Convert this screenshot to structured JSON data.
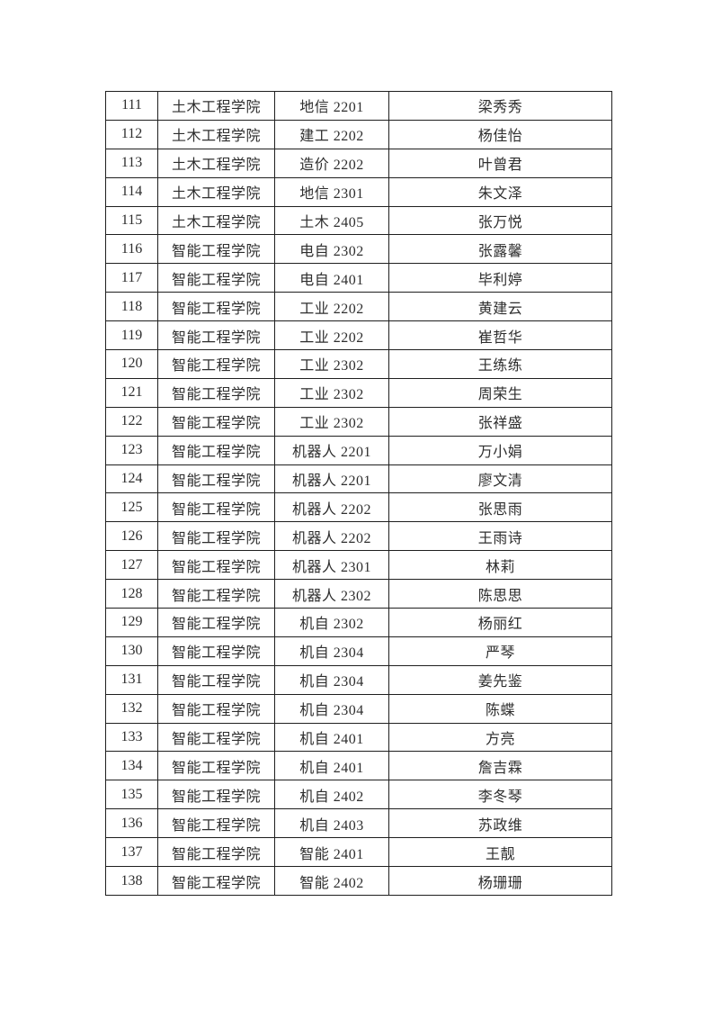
{
  "page": {
    "background": "#ffffff"
  },
  "colors": {
    "border": "#1f1f1f",
    "text": "#2e2e2e",
    "page_background": "#ffffff"
  },
  "table": {
    "rows": [
      {
        "no": "111",
        "college": "土木工程学院",
        "class": "地信 2201",
        "name": "梁秀秀"
      },
      {
        "no": "112",
        "college": "土木工程学院",
        "class": "建工 2202",
        "name": "杨佳怡"
      },
      {
        "no": "113",
        "college": "土木工程学院",
        "class": "造价 2202",
        "name": "叶曾君"
      },
      {
        "no": "114",
        "college": "土木工程学院",
        "class": "地信 2301",
        "name": "朱文泽"
      },
      {
        "no": "115",
        "college": "土木工程学院",
        "class": "土木 2405",
        "name": "张万悦"
      },
      {
        "no": "116",
        "college": "智能工程学院",
        "class": "电自 2302",
        "name": "张露馨"
      },
      {
        "no": "117",
        "college": "智能工程学院",
        "class": "电自 2401",
        "name": "毕利婷"
      },
      {
        "no": "118",
        "college": "智能工程学院",
        "class": "工业 2202",
        "name": "黄建云"
      },
      {
        "no": "119",
        "college": "智能工程学院",
        "class": "工业 2202",
        "name": "崔哲华"
      },
      {
        "no": "120",
        "college": "智能工程学院",
        "class": "工业 2302",
        "name": "王练练"
      },
      {
        "no": "121",
        "college": "智能工程学院",
        "class": "工业 2302",
        "name": "周荣生"
      },
      {
        "no": "122",
        "college": "智能工程学院",
        "class": "工业 2302",
        "name": "张祥盛"
      },
      {
        "no": "123",
        "college": "智能工程学院",
        "class": "机器人 2201",
        "name": "万小娟"
      },
      {
        "no": "124",
        "college": "智能工程学院",
        "class": "机器人 2201",
        "name": "廖文清"
      },
      {
        "no": "125",
        "college": "智能工程学院",
        "class": "机器人 2202",
        "name": "张思雨"
      },
      {
        "no": "126",
        "college": "智能工程学院",
        "class": "机器人 2202",
        "name": "王雨诗"
      },
      {
        "no": "127",
        "college": "智能工程学院",
        "class": "机器人 2301",
        "name": "林莉"
      },
      {
        "no": "128",
        "college": "智能工程学院",
        "class": "机器人 2302",
        "name": "陈思思"
      },
      {
        "no": "129",
        "college": "智能工程学院",
        "class": "机自 2302",
        "name": "杨丽红"
      },
      {
        "no": "130",
        "college": "智能工程学院",
        "class": "机自 2304",
        "name": "严琴"
      },
      {
        "no": "131",
        "college": "智能工程学院",
        "class": "机自 2304",
        "name": "姜先鉴"
      },
      {
        "no": "132",
        "college": "智能工程学院",
        "class": "机自 2304",
        "name": "陈蝶"
      },
      {
        "no": "133",
        "college": "智能工程学院",
        "class": "机自 2401",
        "name": "方亮"
      },
      {
        "no": "134",
        "college": "智能工程学院",
        "class": "机自 2401",
        "name": "詹吉霖"
      },
      {
        "no": "135",
        "college": "智能工程学院",
        "class": "机自 2402",
        "name": "李冬琴"
      },
      {
        "no": "136",
        "college": "智能工程学院",
        "class": "机自 2403",
        "name": "苏政维"
      },
      {
        "no": "137",
        "college": "智能工程学院",
        "class": "智能 2401",
        "name": "王靓"
      },
      {
        "no": "138",
        "college": "智能工程学院",
        "class": "智能 2402",
        "name": "杨珊珊"
      }
    ]
  }
}
